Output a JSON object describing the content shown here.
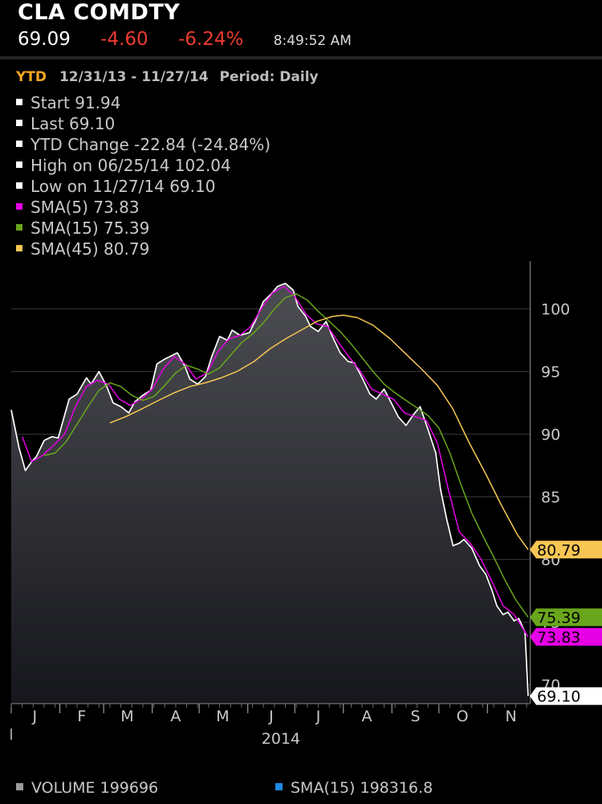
{
  "header": {
    "ticker": "CLA COMDTY",
    "last_price": "69.09",
    "net_change": "-4.60",
    "pct_change": "-6.24%",
    "time": "8:49:52 AM",
    "change_color": "#ee3b32"
  },
  "range": {
    "label": "YTD",
    "dates": "12/31/13 - 11/27/14",
    "period": "Period: Daily"
  },
  "legend": [
    {
      "text": "Start 91.94",
      "color": "#ffffff"
    },
    {
      "text": "Last 69.10",
      "color": "#ffffff"
    },
    {
      "text": "YTD Change -22.84 (-24.84%)",
      "color": "#ffffff"
    },
    {
      "text": "High on 06/25/14 102.04",
      "color": "#ffffff"
    },
    {
      "text": "Low on 11/27/14 69.10",
      "color": "#ffffff"
    },
    {
      "text": "SMA(5) 73.83",
      "color": "#e600e6"
    },
    {
      "text": "SMA(15) 75.39",
      "color": "#6aa61c"
    },
    {
      "text": "SMA(45) 80.79",
      "color": "#f7c654"
    }
  ],
  "footer": {
    "volume": {
      "text": "VOLUME 199696",
      "color": "#9a9a9a"
    },
    "volume_sma": {
      "text": "SMA(15) 198316.8",
      "color": "#1e88e5"
    }
  },
  "chart_data": {
    "type": "line",
    "x_axis": {
      "months": [
        "J",
        "F",
        "M",
        "A",
        "M",
        "J",
        "J",
        "A",
        "S",
        "O",
        "N"
      ],
      "year_label": "2014",
      "range": [
        "2014-01-01",
        "2014-11-28"
      ]
    },
    "y_axis": {
      "ticks": [
        70,
        75,
        80,
        85,
        90,
        95,
        100
      ],
      "ylim": [
        68.5,
        103.5
      ],
      "gridlines": true,
      "side": "right"
    },
    "series": [
      {
        "name": "Price",
        "color": "#ffffff",
        "fill": true,
        "points": [
          [
            "2014-01-01",
            91.94
          ],
          [
            "2014-01-06",
            88.9
          ],
          [
            "2014-01-10",
            87.1
          ],
          [
            "2014-01-14",
            87.8
          ],
          [
            "2014-01-17",
            88.2
          ],
          [
            "2014-01-22",
            89.5
          ],
          [
            "2014-01-27",
            89.8
          ],
          [
            "2014-01-31",
            89.7
          ],
          [
            "2014-02-04",
            91.5
          ],
          [
            "2014-02-07",
            92.8
          ],
          [
            "2014-02-12",
            93.2
          ],
          [
            "2014-02-18",
            94.5
          ],
          [
            "2014-02-21",
            94.0
          ],
          [
            "2014-02-26",
            95.0
          ],
          [
            "2014-03-03",
            93.8
          ],
          [
            "2014-03-07",
            92.5
          ],
          [
            "2014-03-12",
            92.2
          ],
          [
            "2014-03-17",
            91.7
          ],
          [
            "2014-03-21",
            92.6
          ],
          [
            "2014-03-26",
            93.1
          ],
          [
            "2014-03-31",
            93.5
          ],
          [
            "2014-04-04",
            95.6
          ],
          [
            "2014-04-09",
            96.0
          ],
          [
            "2014-04-14",
            96.3
          ],
          [
            "2014-04-17",
            96.5
          ],
          [
            "2014-04-22",
            95.4
          ],
          [
            "2014-04-25",
            94.4
          ],
          [
            "2014-04-30",
            94.0
          ],
          [
            "2014-05-05",
            94.6
          ],
          [
            "2014-05-09",
            96.2
          ],
          [
            "2014-05-14",
            97.8
          ],
          [
            "2014-05-19",
            97.5
          ],
          [
            "2014-05-22",
            98.3
          ],
          [
            "2014-05-27",
            97.9
          ],
          [
            "2014-06-02",
            98.1
          ],
          [
            "2014-06-06",
            99.1
          ],
          [
            "2014-06-11",
            100.6
          ],
          [
            "2014-06-16",
            101.2
          ],
          [
            "2014-06-20",
            101.8
          ],
          [
            "2014-06-25",
            102.04
          ],
          [
            "2014-06-30",
            101.5
          ],
          [
            "2014-07-03",
            100.2
          ],
          [
            "2014-07-08",
            99.4
          ],
          [
            "2014-07-11",
            98.6
          ],
          [
            "2014-07-16",
            98.2
          ],
          [
            "2014-07-21",
            99.0
          ],
          [
            "2014-07-25",
            97.8
          ],
          [
            "2014-07-30",
            96.5
          ],
          [
            "2014-08-04",
            95.8
          ],
          [
            "2014-08-08",
            95.7
          ],
          [
            "2014-08-13",
            94.5
          ],
          [
            "2014-08-18",
            93.2
          ],
          [
            "2014-08-22",
            92.8
          ],
          [
            "2014-08-27",
            93.6
          ],
          [
            "2014-09-01",
            92.4
          ],
          [
            "2014-09-05",
            91.4
          ],
          [
            "2014-09-10",
            90.7
          ],
          [
            "2014-09-15",
            91.6
          ],
          [
            "2014-09-19",
            92.2
          ],
          [
            "2014-09-24",
            90.4
          ],
          [
            "2014-09-29",
            88.5
          ],
          [
            "2014-10-02",
            85.6
          ],
          [
            "2014-10-06",
            83.2
          ],
          [
            "2014-10-10",
            81.1
          ],
          [
            "2014-10-14",
            81.3
          ],
          [
            "2014-10-17",
            81.6
          ],
          [
            "2014-10-22",
            80.9
          ],
          [
            "2014-10-27",
            79.5
          ],
          [
            "2014-10-31",
            78.8
          ],
          [
            "2014-11-04",
            77.5
          ],
          [
            "2014-11-07",
            76.3
          ],
          [
            "2014-11-11",
            75.6
          ],
          [
            "2014-11-14",
            75.8
          ],
          [
            "2014-11-18",
            75.1
          ],
          [
            "2014-11-21",
            75.3
          ],
          [
            "2014-11-25",
            74.2
          ],
          [
            "2014-11-27",
            69.1
          ]
        ]
      },
      {
        "name": "SMA(5)",
        "color": "#e600e6",
        "points": [
          [
            "2014-01-08",
            89.8
          ],
          [
            "2014-01-14",
            87.8
          ],
          [
            "2014-01-21",
            88.3
          ],
          [
            "2014-01-28",
            89.1
          ],
          [
            "2014-02-04",
            90.0
          ],
          [
            "2014-02-11",
            92.2
          ],
          [
            "2014-02-18",
            93.8
          ],
          [
            "2014-02-25",
            94.3
          ],
          [
            "2014-03-04",
            94.0
          ],
          [
            "2014-03-11",
            92.8
          ],
          [
            "2014-03-18",
            92.3
          ],
          [
            "2014-03-25",
            92.8
          ],
          [
            "2014-04-01",
            93.6
          ],
          [
            "2014-04-08",
            95.2
          ],
          [
            "2014-04-15",
            96.2
          ],
          [
            "2014-04-22",
            95.6
          ],
          [
            "2014-04-29",
            94.4
          ],
          [
            "2014-05-06",
            94.9
          ],
          [
            "2014-05-13",
            96.6
          ],
          [
            "2014-05-20",
            97.6
          ],
          [
            "2014-05-27",
            97.9
          ],
          [
            "2014-06-03",
            98.6
          ],
          [
            "2014-06-10",
            100.1
          ],
          [
            "2014-06-17",
            101.3
          ],
          [
            "2014-06-24",
            101.8
          ],
          [
            "2014-07-01",
            101.0
          ],
          [
            "2014-07-08",
            99.6
          ],
          [
            "2014-07-15",
            98.8
          ],
          [
            "2014-07-22",
            98.6
          ],
          [
            "2014-07-29",
            97.3
          ],
          [
            "2014-08-05",
            96.1
          ],
          [
            "2014-08-12",
            95.0
          ],
          [
            "2014-08-19",
            93.6
          ],
          [
            "2014-08-26",
            93.2
          ],
          [
            "2014-09-02",
            92.8
          ],
          [
            "2014-09-09",
            91.7
          ],
          [
            "2014-09-16",
            91.4
          ],
          [
            "2014-09-23",
            91.1
          ],
          [
            "2014-09-30",
            89.3
          ],
          [
            "2014-10-07",
            85.6
          ],
          [
            "2014-10-14",
            82.2
          ],
          [
            "2014-10-21",
            81.3
          ],
          [
            "2014-10-28",
            80.0
          ],
          [
            "2014-11-04",
            78.2
          ],
          [
            "2014-11-11",
            76.3
          ],
          [
            "2014-11-18",
            75.6
          ],
          [
            "2014-11-27",
            73.83
          ]
        ]
      },
      {
        "name": "SMA(15)",
        "color": "#6aa61c",
        "points": [
          [
            "2014-01-22",
            88.3
          ],
          [
            "2014-01-29",
            88.5
          ],
          [
            "2014-02-05",
            89.4
          ],
          [
            "2014-02-12",
            90.8
          ],
          [
            "2014-02-19",
            92.2
          ],
          [
            "2014-02-26",
            93.5
          ],
          [
            "2014-03-05",
            94.1
          ],
          [
            "2014-03-12",
            93.8
          ],
          [
            "2014-03-19",
            93.1
          ],
          [
            "2014-03-26",
            92.7
          ],
          [
            "2014-04-02",
            93.0
          ],
          [
            "2014-04-09",
            93.9
          ],
          [
            "2014-04-16",
            94.9
          ],
          [
            "2014-04-23",
            95.5
          ],
          [
            "2014-04-30",
            95.2
          ],
          [
            "2014-05-07",
            94.8
          ],
          [
            "2014-05-14",
            95.3
          ],
          [
            "2014-05-21",
            96.3
          ],
          [
            "2014-05-28",
            97.3
          ],
          [
            "2014-06-04",
            98.0
          ],
          [
            "2014-06-11",
            98.9
          ],
          [
            "2014-06-18",
            100.0
          ],
          [
            "2014-06-25",
            100.9
          ],
          [
            "2014-07-02",
            101.2
          ],
          [
            "2014-07-09",
            100.7
          ],
          [
            "2014-07-16",
            99.8
          ],
          [
            "2014-07-23",
            99.0
          ],
          [
            "2014-07-30",
            98.2
          ],
          [
            "2014-08-06",
            97.2
          ],
          [
            "2014-08-13",
            96.1
          ],
          [
            "2014-08-20",
            95.0
          ],
          [
            "2014-08-27",
            94.0
          ],
          [
            "2014-09-03",
            93.3
          ],
          [
            "2014-09-10",
            92.7
          ],
          [
            "2014-09-17",
            92.1
          ],
          [
            "2014-09-24",
            91.5
          ],
          [
            "2014-10-01",
            90.5
          ],
          [
            "2014-10-08",
            88.5
          ],
          [
            "2014-10-15",
            86.0
          ],
          [
            "2014-10-22",
            83.7
          ],
          [
            "2014-10-29",
            81.9
          ],
          [
            "2014-11-05",
            80.2
          ],
          [
            "2014-11-12",
            78.4
          ],
          [
            "2014-11-19",
            76.8
          ],
          [
            "2014-11-27",
            75.39
          ]
        ]
      },
      {
        "name": "SMA(45)",
        "color": "#f7c654",
        "points": [
          [
            "2014-03-05",
            90.9
          ],
          [
            "2014-03-15",
            91.4
          ],
          [
            "2014-03-25",
            92.0
          ],
          [
            "2014-04-05",
            92.7
          ],
          [
            "2014-04-15",
            93.3
          ],
          [
            "2014-04-25",
            93.8
          ],
          [
            "2014-05-05",
            94.1
          ],
          [
            "2014-05-15",
            94.5
          ],
          [
            "2014-05-25",
            95.0
          ],
          [
            "2014-06-05",
            95.8
          ],
          [
            "2014-06-15",
            96.8
          ],
          [
            "2014-06-25",
            97.6
          ],
          [
            "2014-07-05",
            98.3
          ],
          [
            "2014-07-15",
            99.0
          ],
          [
            "2014-07-25",
            99.4
          ],
          [
            "2014-08-01",
            99.5
          ],
          [
            "2014-08-10",
            99.3
          ],
          [
            "2014-08-20",
            98.7
          ],
          [
            "2014-08-31",
            97.6
          ],
          [
            "2014-09-10",
            96.4
          ],
          [
            "2014-09-20",
            95.2
          ],
          [
            "2014-09-30",
            93.9
          ],
          [
            "2014-10-10",
            92.0
          ],
          [
            "2014-10-20",
            89.4
          ],
          [
            "2014-10-31",
            86.8
          ],
          [
            "2014-11-10",
            84.3
          ],
          [
            "2014-11-20",
            82.0
          ],
          [
            "2014-11-27",
            80.79
          ]
        ]
      }
    ],
    "price_tags": [
      {
        "text": "80.79",
        "value": 80.79,
        "bg": "#f7c654",
        "fg": "#000000"
      },
      {
        "text": "75.39",
        "value": 75.39,
        "bg": "#6aa61c",
        "fg": "#000000"
      },
      {
        "text": "73.83",
        "value": 73.83,
        "bg": "#e600e6",
        "fg": "#000000"
      },
      {
        "text": "69.10",
        "value": 69.1,
        "bg": "#ffffff",
        "fg": "#000000"
      }
    ]
  }
}
